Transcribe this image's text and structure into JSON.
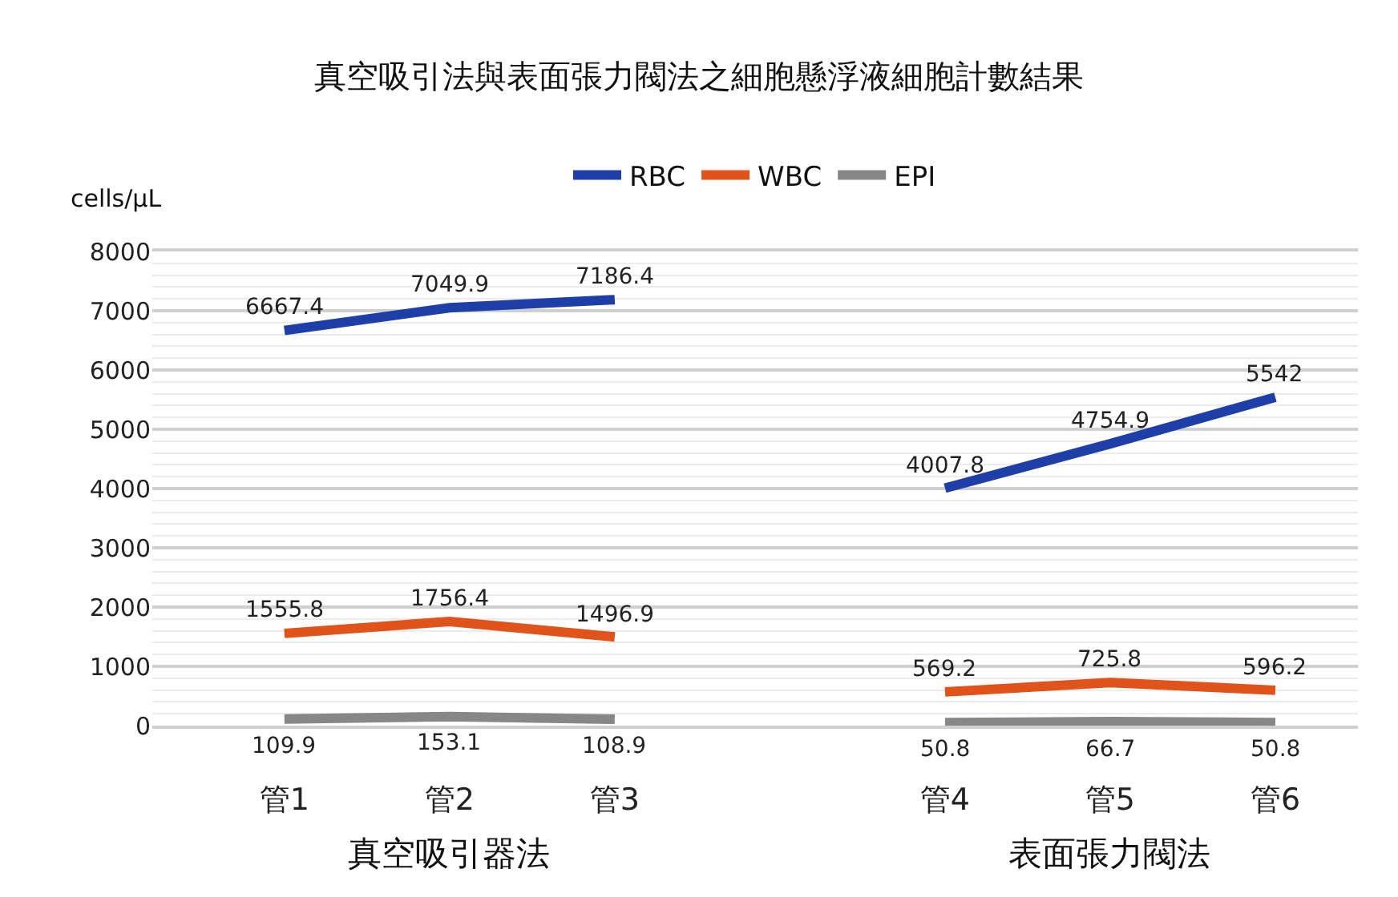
{
  "chart_data": {
    "type": "line",
    "title": "真空吸引法與表面張力閥法之細胞懸浮液細胞計數結果",
    "ylabel": "cells/μL",
    "categories": [
      "管1",
      "管2",
      "管3",
      null,
      "管4",
      "管5",
      "管6"
    ],
    "series": [
      {
        "name": "RBC",
        "color": "#1f3fa8",
        "values": [
          6667.4,
          7049.9,
          7186.4,
          null,
          4007.8,
          4754.9,
          5542
        ]
      },
      {
        "name": "WBC",
        "color": "#e0531a",
        "values": [
          1555.8,
          1756.4,
          1496.9,
          null,
          569.2,
          725.8,
          596.2
        ]
      },
      {
        "name": "EPI",
        "color": "#878787",
        "values": [
          109.9,
          153.1,
          108.9,
          null,
          50.8,
          66.7,
          50.8
        ]
      }
    ],
    "annotations": [
      "真空吸引器法",
      "表面張力閥法"
    ],
    "ylim": [
      0,
      8000
    ],
    "yticks": [
      0,
      1000,
      2000,
      3000,
      4000,
      5000,
      6000,
      7000,
      8000
    ],
    "grid": "y",
    "legend": "top",
    "data_labels": true,
    "marker": "none",
    "line_style": "solid"
  }
}
